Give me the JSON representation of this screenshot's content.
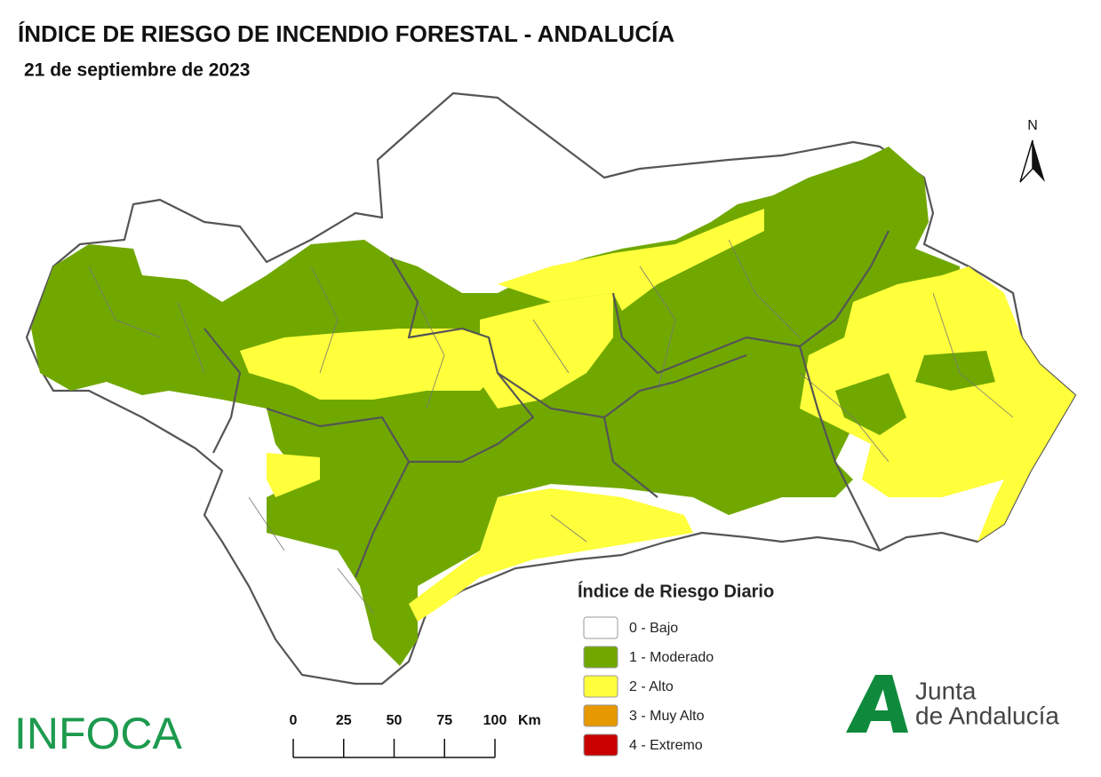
{
  "header": {
    "title": "ÍNDICE DE RIESGO DE INCENDIO FORESTAL - ANDALUCÍA",
    "date": "21 de septiembre de 2023"
  },
  "legend": {
    "title": "Índice de Riesgo Diario",
    "items": [
      {
        "label": "0 - Bajo",
        "color": "#ffffff"
      },
      {
        "label": "1 - Moderado",
        "color": "#70a800"
      },
      {
        "label": "2 - Alto",
        "color": "#ffff3c"
      },
      {
        "label": "3 - Muy Alto",
        "color": "#e69800"
      },
      {
        "label": "4 - Extremo",
        "color": "#c80000"
      }
    ]
  },
  "scale": {
    "ticks": [
      0,
      25,
      50,
      75,
      100
    ],
    "unit": "Km"
  },
  "north": "N",
  "logos": {
    "infoca": "INFOCA",
    "junta": [
      "Junta",
      "de Andalucía"
    ]
  }
}
